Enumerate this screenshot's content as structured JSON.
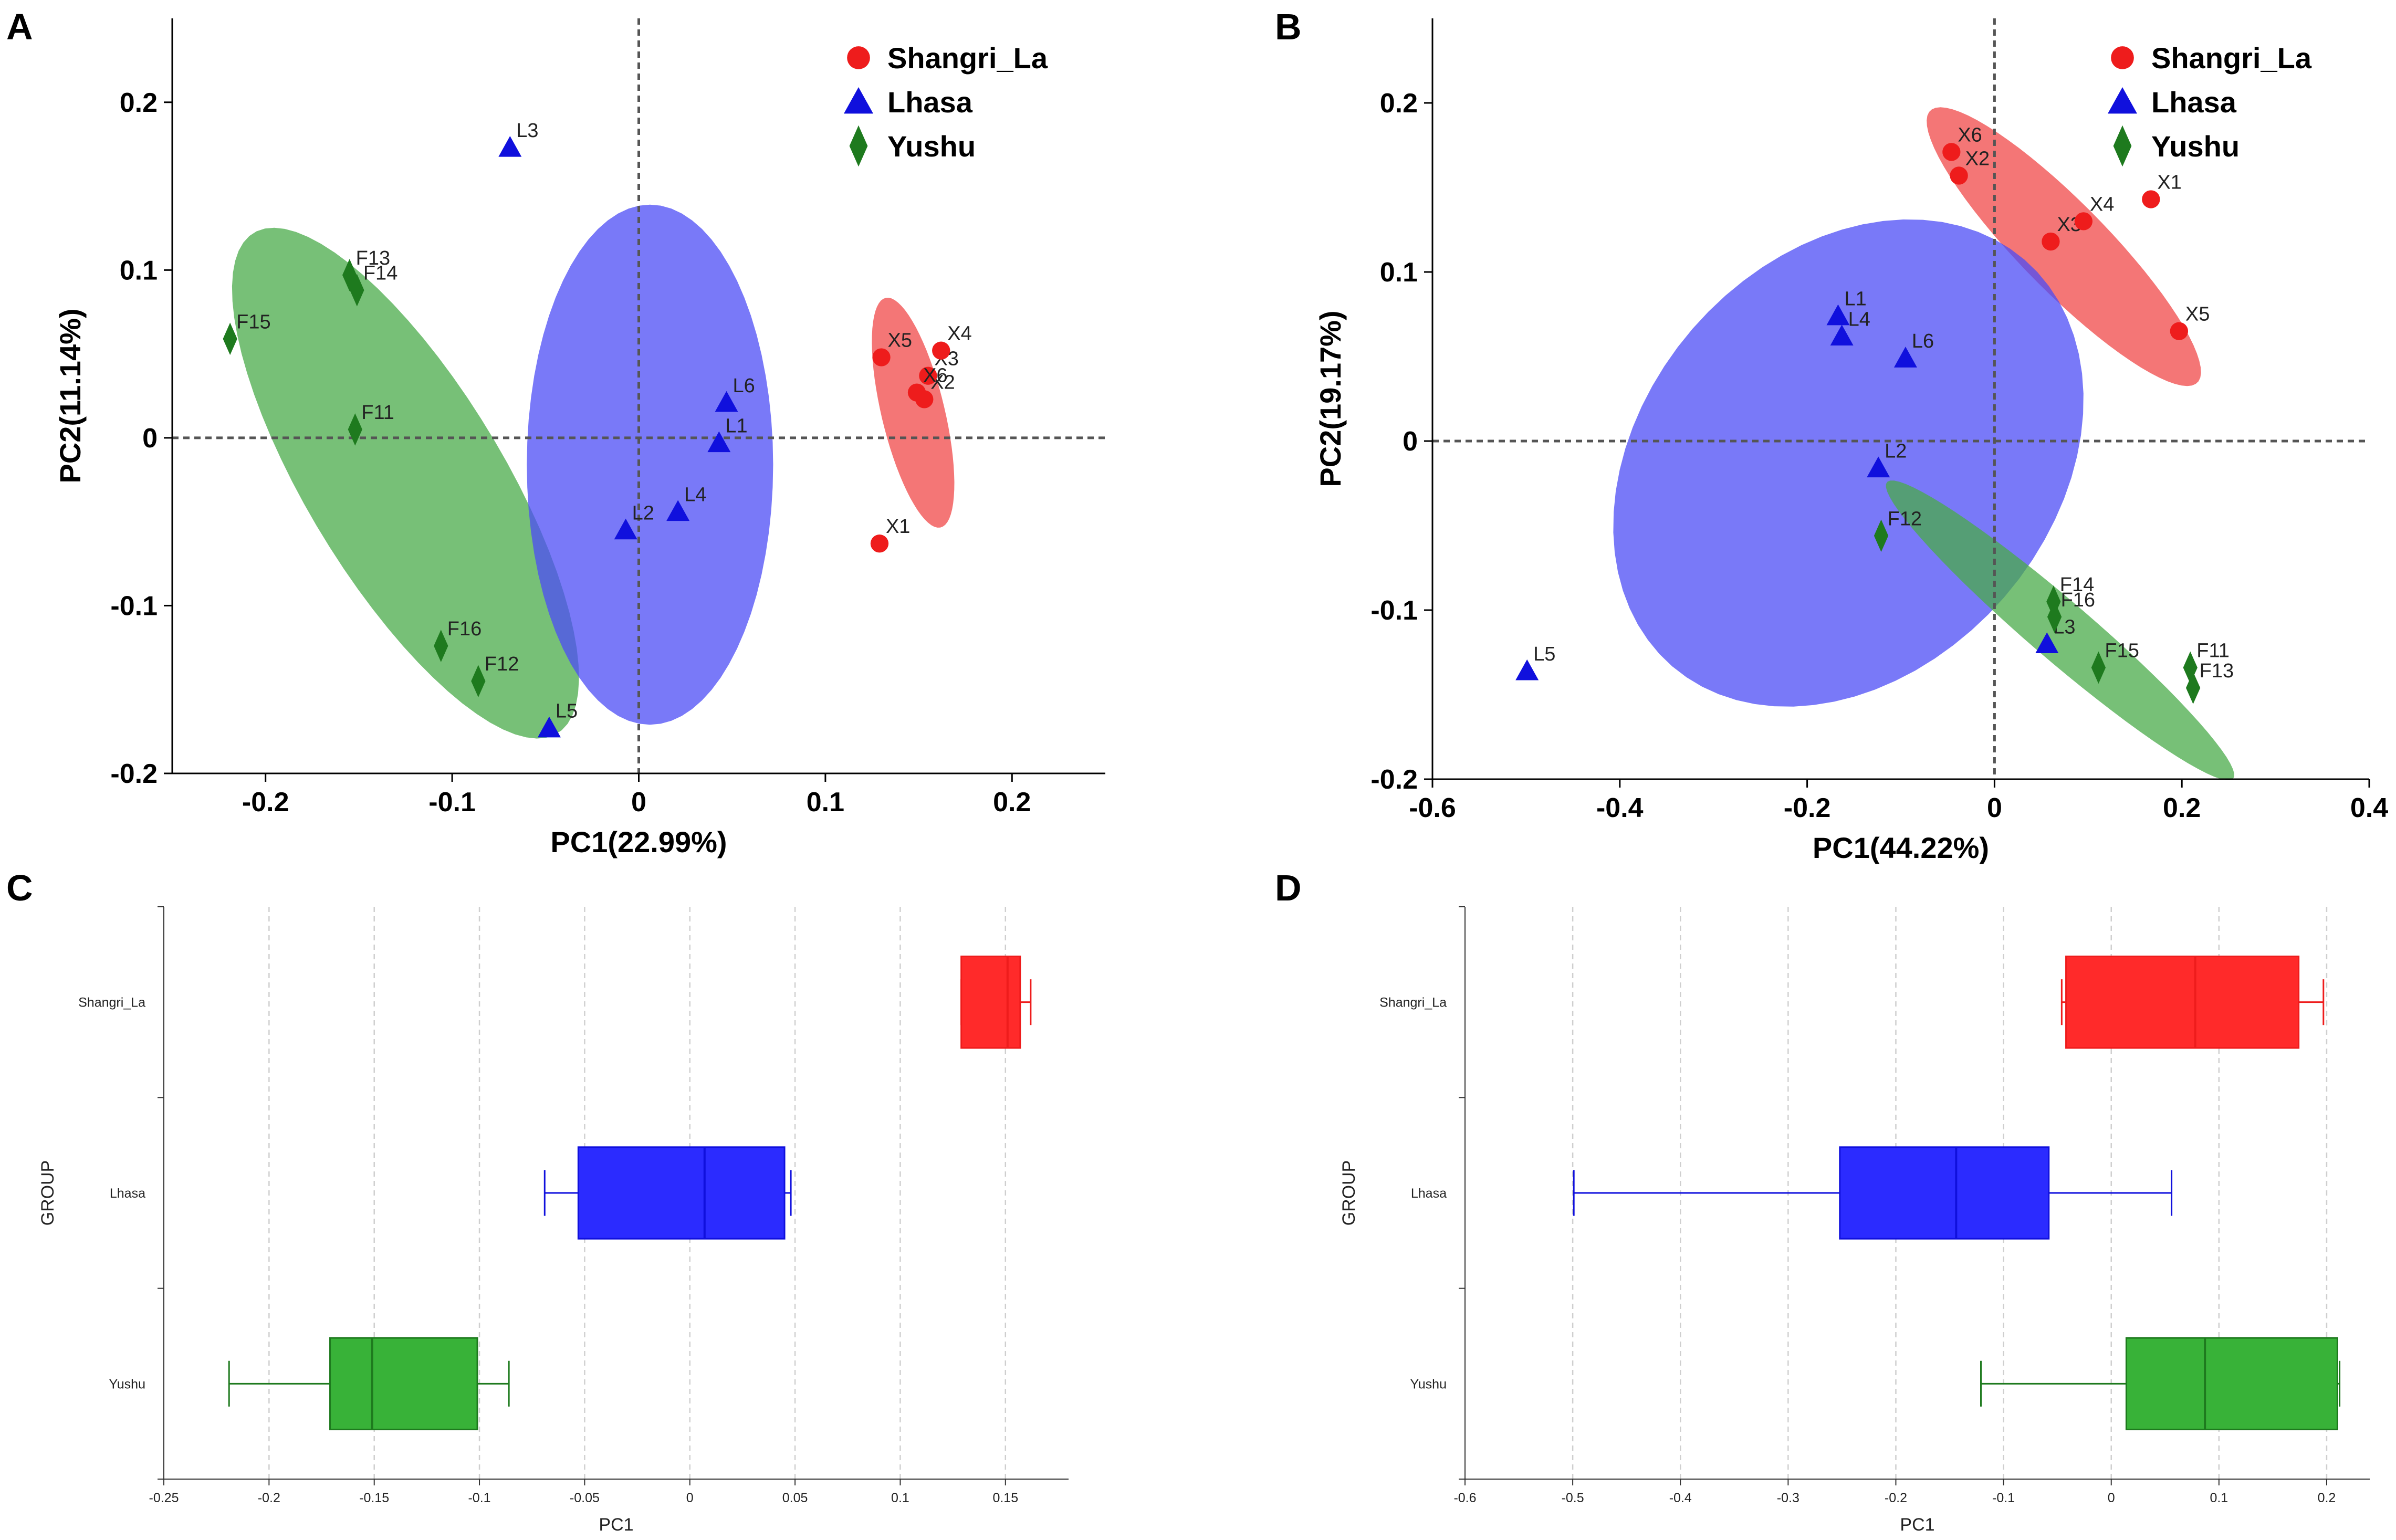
{
  "panel_labels": [
    "A",
    "B",
    "C",
    "D"
  ],
  "colors": {
    "Shangri_La": "#ee1c1c",
    "Lhasa": "#1010dd",
    "Yushu": "#1e7a1e",
    "Shangri_La_fill": "#f04848",
    "Lhasa_fill": "#4c4cf6",
    "Yushu_fill": "#4aab4a",
    "box_Shangri_La": "#ff2a2a",
    "box_Lhasa": "#2b2bff",
    "box_Yushu": "#38b238"
  },
  "chart_data": [
    {
      "panel": "A",
      "type": "scatter",
      "xlabel": "PC1(22.99%)",
      "ylabel": "PC2(11.14%)",
      "xlim": [
        -0.25,
        0.25
      ],
      "ylim": [
        -0.2,
        0.25
      ],
      "xticks": [
        -0.2,
        -0.1,
        0,
        0.1,
        0.2
      ],
      "xtick_labels": [
        "-0.2",
        "-0.1",
        "0",
        "0.1",
        "0.2"
      ],
      "yticks": [
        -0.2,
        -0.1,
        0,
        0.1,
        0.2
      ],
      "ytick_labels": [
        "-0.2",
        "-0.1",
        "0",
        "0.1",
        "0.2"
      ],
      "legend": [
        "Shangri_La",
        "Lhasa",
        "Yushu"
      ],
      "legend_position": "top-right",
      "series": [
        {
          "name": "Shangri_La",
          "marker": "circle",
          "points": [
            {
              "label": "X1",
              "x": 0.129,
              "y": -0.063
            },
            {
              "label": "X2",
              "x": 0.153,
              "y": 0.023
            },
            {
              "label": "X3",
              "x": 0.155,
              "y": 0.037
            },
            {
              "label": "X4",
              "x": 0.162,
              "y": 0.052
            },
            {
              "label": "X5",
              "x": 0.13,
              "y": 0.048
            },
            {
              "label": "X6",
              "x": 0.149,
              "y": 0.027
            }
          ]
        },
        {
          "name": "Lhasa",
          "marker": "triangle",
          "points": [
            {
              "label": "L1",
              "x": 0.043,
              "y": -0.003
            },
            {
              "label": "L2",
              "x": -0.007,
              "y": -0.055
            },
            {
              "label": "L3",
              "x": -0.069,
              "y": 0.173
            },
            {
              "label": "L4",
              "x": 0.021,
              "y": -0.044
            },
            {
              "label": "L5",
              "x": -0.048,
              "y": -0.173
            },
            {
              "label": "L6",
              "x": 0.047,
              "y": 0.021
            }
          ]
        },
        {
          "name": "Yushu",
          "marker": "diamond",
          "points": [
            {
              "label": "F11",
              "x": -0.152,
              "y": 0.005
            },
            {
              "label": "F12",
              "x": -0.086,
              "y": -0.145
            },
            {
              "label": "F13",
              "x": -0.155,
              "y": 0.097
            },
            {
              "label": "F14",
              "x": -0.151,
              "y": 0.088
            },
            {
              "label": "F15",
              "x": -0.219,
              "y": 0.059
            },
            {
              "label": "F16",
              "x": -0.106,
              "y": -0.124
            }
          ]
        }
      ],
      "ellipses": [
        {
          "group": "Yushu",
          "center": [
            -0.125,
            -0.027
          ],
          "semi_major": 0.17,
          "semi_minor": 0.054,
          "angle_deg": -62
        },
        {
          "group": "Lhasa",
          "center": [
            0.006,
            -0.016
          ],
          "semi_major": 0.155,
          "semi_minor": 0.066,
          "angle_deg": -90
        },
        {
          "group": "Shangri_La",
          "center": [
            0.147,
            0.015
          ],
          "semi_major": 0.07,
          "semi_minor": 0.017,
          "angle_deg": -78
        }
      ]
    },
    {
      "panel": "B",
      "type": "scatter",
      "xlabel": "PC1(44.22%)",
      "ylabel": "PC2(19.17%)",
      "xlim": [
        -0.6,
        0.4
      ],
      "ylim": [
        -0.2,
        0.25
      ],
      "xticks": [
        -0.6,
        -0.4,
        -0.2,
        0,
        0.2,
        0.4
      ],
      "xtick_labels": [
        "-0.6",
        "-0.4",
        "-0.2",
        "0",
        "0.2",
        "0.4"
      ],
      "yticks": [
        -0.2,
        -0.1,
        0,
        0.1,
        0.2
      ],
      "ytick_labels": [
        "-0.2",
        "-0.1",
        "0",
        "0.1",
        "0.2"
      ],
      "legend": [
        "Shangri_La",
        "Lhasa",
        "Yushu"
      ],
      "legend_position": "top-right",
      "series": [
        {
          "name": "Shangri_La",
          "marker": "circle",
          "points": [
            {
              "label": "X1",
              "x": 0.167,
              "y": 0.143
            },
            {
              "label": "X2",
              "x": -0.038,
              "y": 0.157
            },
            {
              "label": "X3",
              "x": 0.06,
              "y": 0.118
            },
            {
              "label": "X4",
              "x": 0.095,
              "y": 0.13
            },
            {
              "label": "X5",
              "x": 0.197,
              "y": 0.065
            },
            {
              "label": "X6",
              "x": -0.046,
              "y": 0.171
            }
          ]
        },
        {
          "name": "Lhasa",
          "marker": "triangle",
          "points": [
            {
              "label": "L1",
              "x": -0.167,
              "y": 0.074
            },
            {
              "label": "L2",
              "x": -0.124,
              "y": -0.016
            },
            {
              "label": "L3",
              "x": 0.056,
              "y": -0.12
            },
            {
              "label": "L4",
              "x": -0.163,
              "y": 0.062
            },
            {
              "label": "L5",
              "x": -0.499,
              "y": -0.136
            },
            {
              "label": "L6",
              "x": -0.095,
              "y": 0.049
            }
          ]
        },
        {
          "name": "Yushu",
          "marker": "diamond",
          "points": [
            {
              "label": "F11",
              "x": 0.209,
              "y": -0.134
            },
            {
              "label": "F12",
              "x": -0.121,
              "y": -0.056
            },
            {
              "label": "F13",
              "x": 0.212,
              "y": -0.146
            },
            {
              "label": "F14",
              "x": 0.063,
              "y": -0.095
            },
            {
              "label": "F15",
              "x": 0.111,
              "y": -0.134
            },
            {
              "label": "F16",
              "x": 0.064,
              "y": -0.104
            }
          ]
        }
      ],
      "ellipses": [
        {
          "group": "Shangri_La",
          "center": [
            0.074,
            0.115
          ],
          "semi_major": 0.165,
          "semi_minor": 0.032,
          "angle_deg": -28
        },
        {
          "group": "Lhasa",
          "center": [
            -0.156,
            -0.013
          ],
          "semi_major": 0.255,
          "semi_minor": 0.137,
          "angle_deg": 12
        },
        {
          "group": "Yushu",
          "center": [
            0.07,
            -0.112
          ],
          "semi_major": 0.205,
          "semi_minor": 0.021,
          "angle_deg": -25
        }
      ]
    },
    {
      "panel": "C",
      "type": "box",
      "orientation": "horizontal",
      "xlabel": "PC1",
      "ylabel": "GROUP",
      "xlim": [
        -0.25,
        0.18
      ],
      "xticks": [
        -0.25,
        -0.2,
        -0.15,
        -0.1,
        -0.05,
        0,
        0.05,
        0.1,
        0.15
      ],
      "xtick_labels": [
        "-0.25",
        "-0.2",
        "-0.15",
        "-0.1",
        "-0.05",
        "0",
        "0.05",
        "0.1",
        "0.15"
      ],
      "categories": [
        "Shangri_La",
        "Lhasa",
        "Yushu"
      ],
      "boxes": [
        {
          "group": "Shangri_La",
          "whisker_low": 0.129,
          "q1": 0.129,
          "median": 0.151,
          "q3": 0.157,
          "whisker_high": 0.162
        },
        {
          "group": "Lhasa",
          "whisker_low": -0.069,
          "q1": -0.053,
          "median": 0.007,
          "q3": 0.045,
          "whisker_high": 0.048
        },
        {
          "group": "Yushu",
          "whisker_low": -0.219,
          "q1": -0.171,
          "median": -0.151,
          "q3": -0.101,
          "whisker_high": -0.086
        }
      ]
    },
    {
      "panel": "D",
      "type": "box",
      "orientation": "horizontal",
      "xlabel": "PC1",
      "ylabel": "GROUP",
      "xlim": [
        -0.6,
        0.24
      ],
      "xticks": [
        -0.6,
        -0.5,
        -0.4,
        -0.3,
        -0.2,
        -0.1,
        0,
        0.1,
        0.2
      ],
      "xtick_labels": [
        "-0.6",
        "-0.5",
        "-0.4",
        "-0.3",
        "-0.2",
        "-0.1",
        "0",
        "0.1",
        "0.2"
      ],
      "categories": [
        "Shangri_La",
        "Lhasa",
        "Yushu"
      ],
      "boxes": [
        {
          "group": "Shangri_La",
          "whisker_low": -0.046,
          "q1": -0.042,
          "median": 0.078,
          "q3": 0.174,
          "whisker_high": 0.197
        },
        {
          "group": "Lhasa",
          "whisker_low": -0.499,
          "q1": -0.252,
          "median": -0.144,
          "q3": -0.058,
          "whisker_high": 0.056
        },
        {
          "group": "Yushu",
          "whisker_low": -0.121,
          "q1": 0.014,
          "median": 0.087,
          "q3": 0.21,
          "whisker_high": 0.212
        }
      ]
    }
  ]
}
